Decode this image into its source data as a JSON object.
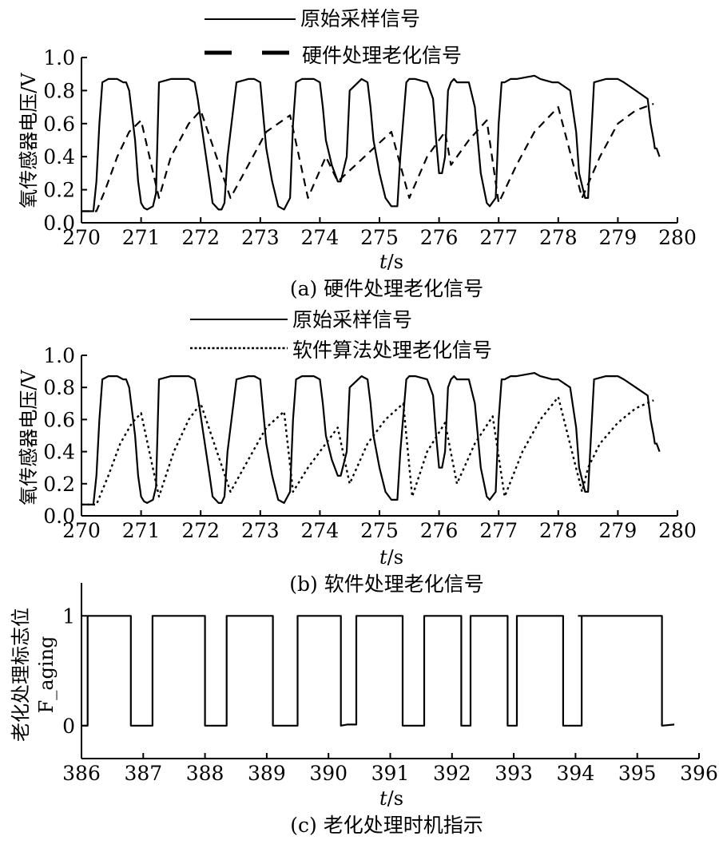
{
  "chart_data": [
    {
      "type": "line",
      "caption": "(a) 硬件处理老化信号",
      "ylabel": "氧传感器电压/V",
      "xlabel_italic": "t",
      "xlabel_unit": "/s",
      "xlim": [
        270,
        280
      ],
      "ylim": [
        0,
        1.0
      ],
      "x_ticks": [
        "270",
        "271",
        "272",
        "273",
        "274",
        "275",
        "276",
        "277",
        "278",
        "279",
        "280"
      ],
      "y_ticks": [
        "0.0",
        "0.2",
        "0.4",
        "0.6",
        "0.8",
        "1.0"
      ],
      "legend": [
        "原始采样信号",
        "硬件处理老化信号"
      ],
      "series": [
        {
          "name": "原始采样信号",
          "style": "solid",
          "x": [
            270.0,
            270.2,
            270.25,
            270.3,
            270.35,
            270.45,
            270.6,
            270.7,
            270.75,
            270.8,
            270.9,
            270.95,
            271.0,
            271.05,
            271.1,
            271.2,
            271.25,
            271.3,
            271.5,
            271.8,
            271.9,
            271.95,
            272.05,
            272.15,
            272.2,
            272.3,
            272.35,
            272.4,
            272.45,
            272.6,
            272.8,
            272.9,
            273.0,
            273.05,
            273.1,
            273.2,
            273.3,
            273.4,
            273.5,
            273.55,
            273.6,
            273.7,
            273.9,
            274.0,
            274.05,
            274.1,
            274.2,
            274.3,
            274.35,
            274.45,
            274.5,
            274.7,
            274.8,
            274.85,
            274.9,
            275.0,
            275.1,
            275.2,
            275.3,
            275.35,
            275.45,
            275.5,
            275.6,
            275.8,
            275.9,
            275.95,
            276.0,
            276.05,
            276.1,
            276.15,
            276.2,
            276.25,
            276.3,
            276.5,
            276.6,
            276.65,
            276.7,
            276.8,
            276.85,
            276.95,
            277.0,
            277.05,
            277.1,
            277.2,
            277.3,
            277.6,
            277.7,
            277.9,
            278.0,
            278.2,
            278.3,
            278.35,
            278.45,
            278.5,
            278.55,
            278.6,
            278.8,
            279.0,
            279.1,
            279.3,
            279.5,
            279.55,
            279.6,
            279.62,
            279.65,
            279.7
          ],
          "y": [
            0.07,
            0.07,
            0.25,
            0.6,
            0.85,
            0.87,
            0.87,
            0.85,
            0.85,
            0.8,
            0.5,
            0.25,
            0.12,
            0.09,
            0.08,
            0.1,
            0.18,
            0.85,
            0.87,
            0.87,
            0.85,
            0.75,
            0.5,
            0.25,
            0.12,
            0.08,
            0.08,
            0.12,
            0.4,
            0.85,
            0.87,
            0.87,
            0.85,
            0.65,
            0.45,
            0.25,
            0.1,
            0.08,
            0.15,
            0.6,
            0.85,
            0.87,
            0.87,
            0.85,
            0.7,
            0.5,
            0.35,
            0.25,
            0.25,
            0.4,
            0.8,
            0.87,
            0.85,
            0.7,
            0.5,
            0.3,
            0.15,
            0.1,
            0.1,
            0.4,
            0.85,
            0.87,
            0.87,
            0.85,
            0.75,
            0.5,
            0.3,
            0.3,
            0.4,
            0.8,
            0.85,
            0.87,
            0.85,
            0.85,
            0.7,
            0.5,
            0.3,
            0.12,
            0.1,
            0.15,
            0.6,
            0.85,
            0.85,
            0.87,
            0.87,
            0.89,
            0.87,
            0.85,
            0.85,
            0.8,
            0.55,
            0.3,
            0.15,
            0.15,
            0.5,
            0.85,
            0.87,
            0.87,
            0.85,
            0.8,
            0.75,
            0.6,
            0.5,
            0.45,
            0.45,
            0.4
          ]
        },
        {
          "name": "硬件处理老化信号",
          "style": "dash",
          "x": [
            270.0,
            270.25,
            270.4,
            270.6,
            270.8,
            271.0,
            271.3,
            271.5,
            271.8,
            272.0,
            272.5,
            272.8,
            273.1,
            273.5,
            273.8,
            274.1,
            274.3,
            274.6,
            274.9,
            275.2,
            275.5,
            275.8,
            276.1,
            276.2,
            276.5,
            276.8,
            277.0,
            277.3,
            277.6,
            278.0,
            278.4,
            278.7,
            279.0,
            279.3,
            279.6
          ],
          "y": [
            0.07,
            0.07,
            0.2,
            0.4,
            0.55,
            0.62,
            0.15,
            0.4,
            0.6,
            0.68,
            0.15,
            0.35,
            0.55,
            0.65,
            0.15,
            0.4,
            0.25,
            0.35,
            0.45,
            0.55,
            0.15,
            0.4,
            0.55,
            0.35,
            0.5,
            0.62,
            0.12,
            0.35,
            0.55,
            0.7,
            0.15,
            0.4,
            0.6,
            0.68,
            0.72
          ]
        }
      ]
    },
    {
      "type": "line",
      "caption": "(b) 软件处理老化信号",
      "ylabel": "氧传感器电压/V",
      "xlabel_italic": "t",
      "xlabel_unit": "/s",
      "xlim": [
        270,
        280
      ],
      "ylim": [
        0,
        1.0
      ],
      "x_ticks": [
        "270",
        "271",
        "272",
        "273",
        "274",
        "275",
        "276",
        "277",
        "278",
        "279",
        "280"
      ],
      "y_ticks": [
        "0.0",
        "0.2",
        "0.4",
        "0.6",
        "0.8",
        "1.0"
      ],
      "legend": [
        "原始采样信号",
        "软件算法处理老化信号"
      ],
      "series": [
        {
          "name": "原始采样信号",
          "style": "solid",
          "x": [
            270.0,
            270.2,
            270.25,
            270.3,
            270.35,
            270.45,
            270.6,
            270.7,
            270.75,
            270.8,
            270.9,
            270.95,
            271.0,
            271.05,
            271.1,
            271.2,
            271.25,
            271.3,
            271.5,
            271.8,
            271.9,
            271.95,
            272.05,
            272.15,
            272.2,
            272.3,
            272.35,
            272.4,
            272.45,
            272.6,
            272.8,
            272.9,
            273.0,
            273.05,
            273.1,
            273.2,
            273.3,
            273.4,
            273.5,
            273.55,
            273.6,
            273.7,
            273.9,
            274.0,
            274.05,
            274.1,
            274.2,
            274.3,
            274.35,
            274.45,
            274.5,
            274.7,
            274.8,
            274.85,
            274.9,
            275.0,
            275.1,
            275.2,
            275.3,
            275.35,
            275.45,
            275.5,
            275.6,
            275.8,
            275.9,
            275.95,
            276.0,
            276.05,
            276.1,
            276.15,
            276.2,
            276.25,
            276.3,
            276.5,
            276.6,
            276.65,
            276.7,
            276.8,
            276.85,
            276.95,
            277.0,
            277.05,
            277.1,
            277.2,
            277.3,
            277.6,
            277.7,
            277.9,
            278.0,
            278.2,
            278.3,
            278.35,
            278.45,
            278.5,
            278.55,
            278.6,
            278.8,
            279.0,
            279.1,
            279.3,
            279.5,
            279.55,
            279.6,
            279.62,
            279.65,
            279.7
          ],
          "y": [
            0.07,
            0.07,
            0.25,
            0.6,
            0.85,
            0.87,
            0.87,
            0.85,
            0.85,
            0.8,
            0.5,
            0.25,
            0.12,
            0.09,
            0.08,
            0.1,
            0.18,
            0.85,
            0.87,
            0.87,
            0.85,
            0.75,
            0.5,
            0.25,
            0.12,
            0.08,
            0.08,
            0.12,
            0.4,
            0.85,
            0.87,
            0.87,
            0.85,
            0.65,
            0.45,
            0.25,
            0.1,
            0.08,
            0.15,
            0.6,
            0.85,
            0.87,
            0.87,
            0.85,
            0.7,
            0.5,
            0.35,
            0.25,
            0.25,
            0.4,
            0.8,
            0.87,
            0.85,
            0.7,
            0.5,
            0.3,
            0.15,
            0.1,
            0.1,
            0.4,
            0.85,
            0.87,
            0.87,
            0.85,
            0.75,
            0.5,
            0.3,
            0.3,
            0.4,
            0.8,
            0.85,
            0.87,
            0.85,
            0.85,
            0.7,
            0.5,
            0.3,
            0.12,
            0.1,
            0.15,
            0.6,
            0.85,
            0.85,
            0.87,
            0.87,
            0.89,
            0.87,
            0.85,
            0.85,
            0.8,
            0.55,
            0.3,
            0.15,
            0.15,
            0.5,
            0.85,
            0.87,
            0.87,
            0.85,
            0.8,
            0.75,
            0.6,
            0.5,
            0.45,
            0.45,
            0.4
          ]
        },
        {
          "name": "软件算法处理老化信号",
          "style": "dot",
          "x": [
            270.0,
            270.25,
            270.45,
            270.65,
            270.85,
            271.0,
            271.3,
            271.55,
            271.8,
            272.0,
            272.5,
            272.8,
            273.1,
            273.4,
            273.55,
            273.8,
            274.1,
            274.3,
            274.5,
            274.8,
            275.1,
            275.4,
            275.55,
            275.8,
            276.1,
            276.3,
            276.6,
            276.9,
            277.1,
            277.4,
            277.7,
            278.0,
            278.4,
            278.5,
            278.7,
            279.0,
            279.3,
            279.6
          ],
          "y": [
            0.07,
            0.07,
            0.25,
            0.45,
            0.58,
            0.64,
            0.12,
            0.4,
            0.6,
            0.7,
            0.15,
            0.35,
            0.55,
            0.65,
            0.15,
            0.3,
            0.45,
            0.55,
            0.2,
            0.45,
            0.6,
            0.7,
            0.12,
            0.4,
            0.58,
            0.2,
            0.45,
            0.62,
            0.12,
            0.4,
            0.6,
            0.74,
            0.15,
            0.3,
            0.45,
            0.58,
            0.67,
            0.72
          ]
        }
      ]
    },
    {
      "type": "line",
      "caption": "(c) 老化处理时机指示",
      "ylabel_line1": "老化处理标志位",
      "ylabel_line2": "F_aging",
      "xlabel_italic": "t",
      "xlabel_unit": "/s",
      "xlim": [
        386,
        396
      ],
      "ylim": [
        -0.3,
        1.3
      ],
      "x_ticks": [
        "386",
        "387",
        "388",
        "389",
        "390",
        "391",
        "392",
        "393",
        "394",
        "395",
        "396"
      ],
      "y_ticks": [
        "0",
        "1"
      ],
      "series": [
        {
          "name": "",
          "style": "solid",
          "x": [
            386.0,
            386.1,
            386.1,
            386.8,
            386.8,
            387.15,
            387.15,
            388.0,
            388.0,
            388.35,
            388.35,
            389.1,
            389.1,
            389.5,
            389.5,
            390.2,
            390.2,
            390.3,
            390.45,
            390.45,
            391.2,
            391.2,
            391.55,
            391.55,
            392.15,
            392.15,
            392.3,
            392.3,
            392.9,
            392.9,
            393.05,
            393.05,
            393.8,
            393.8,
            394.1,
            394.1,
            394.05,
            394.45,
            394.45,
            395.4,
            395.4,
            395.6
          ],
          "y": [
            0,
            0,
            1,
            1,
            0,
            0,
            1,
            1,
            0,
            0,
            1,
            1,
            0,
            0,
            1,
            1,
            0,
            0.01,
            0.01,
            1,
            1,
            0,
            0,
            1,
            1,
            0,
            0,
            1,
            1,
            0,
            0,
            1,
            1,
            0,
            0,
            1,
            1,
            1,
            1,
            1,
            0,
            0.01
          ]
        }
      ]
    }
  ]
}
